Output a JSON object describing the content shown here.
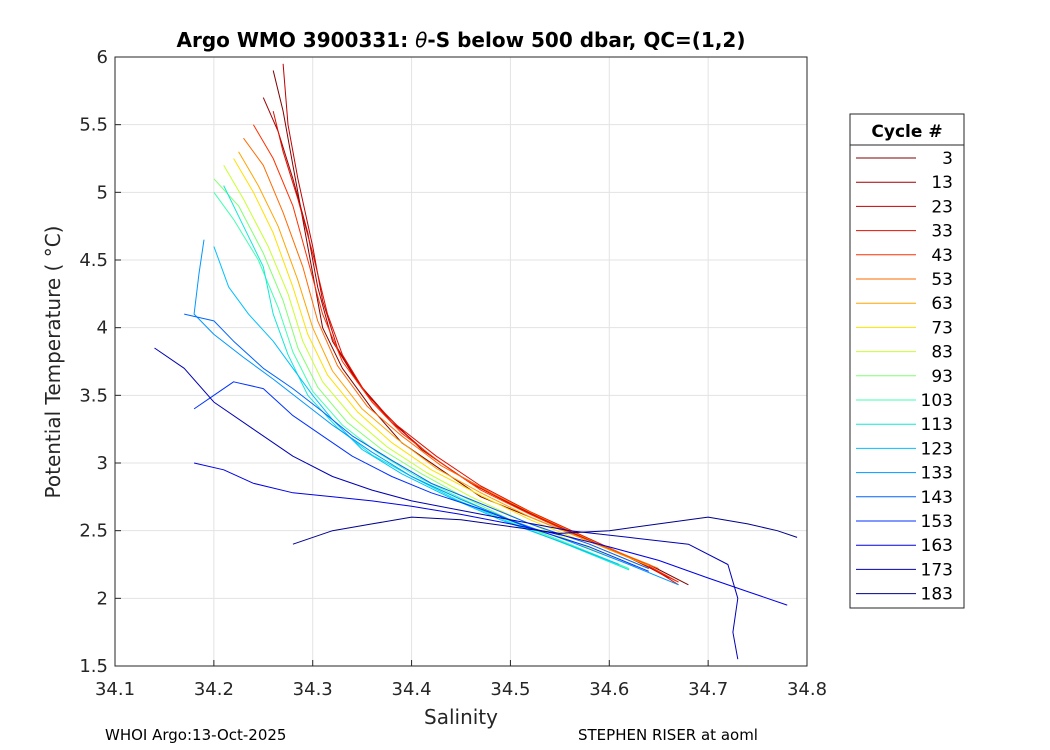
{
  "chart_data": {
    "type": "line",
    "title_parts": {
      "prefix": "Argo WMO 3900331: ",
      "symbol": "θ",
      "suffix": "-S below 500 dbar,  QC=(1,2)"
    },
    "xlabel": "Salinity",
    "ylabel": "Potential Temperature ( °C)",
    "xlim": [
      34.1,
      34.8
    ],
    "ylim": [
      1.5,
      6
    ],
    "xticks": [
      "34.1",
      "34.2",
      "34.3",
      "34.4",
      "34.5",
      "34.6",
      "34.7",
      "34.8"
    ],
    "yticks": [
      "1.5",
      "2",
      "2.5",
      "3",
      "3.5",
      "4",
      "4.5",
      "5",
      "5.5",
      "6"
    ],
    "grid": true,
    "legend": {
      "title": "Cycle #",
      "placement": "right-outside",
      "entries": [
        {
          "label": "3",
          "color": "#7f0000"
        },
        {
          "label": "13",
          "color": "#9e0000"
        },
        {
          "label": "23",
          "color": "#c00000"
        },
        {
          "label": "33",
          "color": "#e01000"
        },
        {
          "label": "43",
          "color": "#ff3000"
        },
        {
          "label": "53",
          "color": "#ff6a00"
        },
        {
          "label": "63",
          "color": "#ffa500"
        },
        {
          "label": "73",
          "color": "#ffe000"
        },
        {
          "label": "83",
          "color": "#c8ff30"
        },
        {
          "label": "93",
          "color": "#80ff70"
        },
        {
          "label": "103",
          "color": "#40ffb0"
        },
        {
          "label": "113",
          "color": "#10e8d8"
        },
        {
          "label": "123",
          "color": "#00c0ff"
        },
        {
          "label": "133",
          "color": "#0096ff"
        },
        {
          "label": "143",
          "color": "#0064ff"
        },
        {
          "label": "153",
          "color": "#0032ff"
        },
        {
          "label": "163",
          "color": "#0000e8"
        },
        {
          "label": "173",
          "color": "#0000b4"
        },
        {
          "label": "183",
          "color": "#00008f"
        }
      ]
    },
    "series": [
      {
        "name": "3",
        "color": "#7f0000",
        "points": [
          [
            34.26,
            5.9
          ],
          [
            34.27,
            5.6
          ],
          [
            34.28,
            5.2
          ],
          [
            34.29,
            4.8
          ],
          [
            34.3,
            4.4
          ],
          [
            34.31,
            4.0
          ],
          [
            34.33,
            3.7
          ],
          [
            34.36,
            3.4
          ],
          [
            34.39,
            3.15
          ],
          [
            34.43,
            2.95
          ],
          [
            34.47,
            2.75
          ],
          [
            34.52,
            2.6
          ],
          [
            34.58,
            2.42
          ],
          [
            34.64,
            2.25
          ],
          [
            34.68,
            2.1
          ]
        ]
      },
      {
        "name": "13",
        "color": "#9e0000",
        "points": [
          [
            34.25,
            5.7
          ],
          [
            34.265,
            5.45
          ],
          [
            34.28,
            5.1
          ],
          [
            34.295,
            4.7
          ],
          [
            34.305,
            4.3
          ],
          [
            34.32,
            3.9
          ],
          [
            34.345,
            3.6
          ],
          [
            34.375,
            3.35
          ],
          [
            34.41,
            3.1
          ],
          [
            34.45,
            2.9
          ],
          [
            34.5,
            2.7
          ],
          [
            34.56,
            2.5
          ],
          [
            34.62,
            2.3
          ],
          [
            34.67,
            2.12
          ]
        ]
      },
      {
        "name": "23",
        "color": "#c00000",
        "points": [
          [
            34.27,
            5.95
          ],
          [
            34.275,
            5.5
          ],
          [
            34.285,
            5.1
          ],
          [
            34.3,
            4.6
          ],
          [
            34.31,
            4.2
          ],
          [
            34.325,
            3.85
          ],
          [
            34.35,
            3.55
          ],
          [
            34.38,
            3.3
          ],
          [
            34.42,
            3.05
          ],
          [
            34.46,
            2.85
          ],
          [
            34.51,
            2.66
          ],
          [
            34.57,
            2.46
          ],
          [
            34.63,
            2.27
          ],
          [
            34.66,
            2.15
          ]
        ]
      },
      {
        "name": "33",
        "color": "#e01000",
        "points": [
          [
            34.26,
            5.6
          ],
          [
            34.27,
            5.3
          ],
          [
            34.285,
            4.95
          ],
          [
            34.3,
            4.55
          ],
          [
            34.315,
            4.1
          ],
          [
            34.33,
            3.8
          ],
          [
            34.355,
            3.5
          ],
          [
            34.385,
            3.28
          ],
          [
            34.425,
            3.05
          ],
          [
            34.47,
            2.83
          ],
          [
            34.52,
            2.64
          ],
          [
            34.58,
            2.44
          ],
          [
            34.64,
            2.24
          ],
          [
            34.67,
            2.1
          ]
        ]
      },
      {
        "name": "43",
        "color": "#ff3000",
        "points": [
          [
            34.24,
            5.5
          ],
          [
            34.26,
            5.25
          ],
          [
            34.28,
            4.9
          ],
          [
            34.295,
            4.5
          ],
          [
            34.31,
            4.1
          ],
          [
            34.33,
            3.75
          ],
          [
            34.36,
            3.45
          ],
          [
            34.39,
            3.22
          ],
          [
            34.43,
            3.0
          ],
          [
            34.47,
            2.8
          ],
          [
            34.52,
            2.62
          ],
          [
            34.58,
            2.42
          ],
          [
            34.64,
            2.24
          ],
          [
            34.67,
            2.12
          ]
        ]
      },
      {
        "name": "53",
        "color": "#ff6a00",
        "points": [
          [
            34.23,
            5.4
          ],
          [
            34.25,
            5.2
          ],
          [
            34.27,
            4.85
          ],
          [
            34.29,
            4.45
          ],
          [
            34.305,
            4.05
          ],
          [
            34.325,
            3.72
          ],
          [
            34.355,
            3.42
          ],
          [
            34.39,
            3.2
          ],
          [
            34.43,
            2.98
          ],
          [
            34.48,
            2.78
          ],
          [
            34.53,
            2.6
          ],
          [
            34.59,
            2.4
          ],
          [
            34.65,
            2.22
          ]
        ]
      },
      {
        "name": "63",
        "color": "#ffa500",
        "points": [
          [
            34.225,
            5.3
          ],
          [
            34.245,
            5.05
          ],
          [
            34.265,
            4.75
          ],
          [
            34.285,
            4.35
          ],
          [
            34.3,
            4.0
          ],
          [
            34.32,
            3.68
          ],
          [
            34.35,
            3.4
          ],
          [
            34.385,
            3.18
          ],
          [
            34.425,
            2.96
          ],
          [
            34.47,
            2.78
          ],
          [
            34.52,
            2.6
          ],
          [
            34.58,
            2.42
          ],
          [
            34.64,
            2.24
          ]
        ]
      },
      {
        "name": "73",
        "color": "#ffe000",
        "points": [
          [
            34.22,
            5.25
          ],
          [
            34.24,
            5.0
          ],
          [
            34.26,
            4.7
          ],
          [
            34.28,
            4.3
          ],
          [
            34.295,
            3.95
          ],
          [
            34.315,
            3.65
          ],
          [
            34.345,
            3.38
          ],
          [
            34.38,
            3.15
          ],
          [
            34.42,
            2.95
          ],
          [
            34.47,
            2.76
          ],
          [
            34.52,
            2.58
          ],
          [
            34.58,
            2.4
          ],
          [
            34.64,
            2.22
          ]
        ]
      },
      {
        "name": "83",
        "color": "#c8ff30",
        "points": [
          [
            34.21,
            5.2
          ],
          [
            34.23,
            4.95
          ],
          [
            34.255,
            4.6
          ],
          [
            34.275,
            4.25
          ],
          [
            34.29,
            3.9
          ],
          [
            34.31,
            3.6
          ],
          [
            34.34,
            3.34
          ],
          [
            34.375,
            3.12
          ],
          [
            34.415,
            2.93
          ],
          [
            34.46,
            2.75
          ],
          [
            34.51,
            2.58
          ],
          [
            34.57,
            2.4
          ],
          [
            34.63,
            2.22
          ]
        ]
      },
      {
        "name": "93",
        "color": "#80ff70",
        "points": [
          [
            34.2,
            5.1
          ],
          [
            34.225,
            4.9
          ],
          [
            34.25,
            4.55
          ],
          [
            34.27,
            4.2
          ],
          [
            34.285,
            3.85
          ],
          [
            34.305,
            3.56
          ],
          [
            34.335,
            3.3
          ],
          [
            34.37,
            3.1
          ],
          [
            34.41,
            2.92
          ],
          [
            34.455,
            2.74
          ],
          [
            34.5,
            2.58
          ],
          [
            34.56,
            2.4
          ],
          [
            34.62,
            2.22
          ]
        ]
      },
      {
        "name": "103",
        "color": "#40ffb0",
        "points": [
          [
            34.2,
            5.0
          ],
          [
            34.22,
            4.8
          ],
          [
            34.245,
            4.5
          ],
          [
            34.265,
            4.15
          ],
          [
            34.28,
            3.82
          ],
          [
            34.3,
            3.53
          ],
          [
            34.33,
            3.28
          ],
          [
            34.365,
            3.08
          ],
          [
            34.405,
            2.9
          ],
          [
            34.45,
            2.74
          ],
          [
            34.5,
            2.57
          ],
          [
            34.56,
            2.4
          ],
          [
            34.62,
            2.22
          ]
        ]
      },
      {
        "name": "113",
        "color": "#10e8d8",
        "points": [
          [
            34.21,
            5.05
          ],
          [
            34.23,
            4.75
          ],
          [
            34.25,
            4.45
          ],
          [
            34.26,
            4.1
          ],
          [
            34.275,
            3.8
          ],
          [
            34.295,
            3.5
          ],
          [
            34.325,
            3.26
          ],
          [
            34.36,
            3.06
          ],
          [
            34.4,
            2.9
          ],
          [
            34.445,
            2.73
          ],
          [
            34.5,
            2.56
          ],
          [
            34.56,
            2.39
          ],
          [
            34.62,
            2.21
          ]
        ]
      },
      {
        "name": "123",
        "color": "#00c0ff",
        "points": [
          [
            34.2,
            4.6
          ],
          [
            34.215,
            4.3
          ],
          [
            34.235,
            4.1
          ],
          [
            34.26,
            3.9
          ],
          [
            34.28,
            3.7
          ],
          [
            34.3,
            3.5
          ],
          [
            34.32,
            3.32
          ],
          [
            34.35,
            3.1
          ],
          [
            34.39,
            2.92
          ],
          [
            34.44,
            2.74
          ],
          [
            34.49,
            2.58
          ],
          [
            34.55,
            2.42
          ],
          [
            34.61,
            2.25
          ]
        ]
      },
      {
        "name": "133",
        "color": "#0096ff",
        "points": [
          [
            34.19,
            4.65
          ],
          [
            34.185,
            4.4
          ],
          [
            34.18,
            4.1
          ],
          [
            34.2,
            3.95
          ],
          [
            34.23,
            3.78
          ],
          [
            34.26,
            3.62
          ],
          [
            34.29,
            3.45
          ],
          [
            34.32,
            3.28
          ],
          [
            34.36,
            3.08
          ],
          [
            34.4,
            2.9
          ],
          [
            34.45,
            2.73
          ],
          [
            34.5,
            2.58
          ],
          [
            34.56,
            2.42
          ],
          [
            34.62,
            2.25
          ],
          [
            34.67,
            2.1
          ]
        ]
      },
      {
        "name": "143",
        "color": "#0064ff",
        "points": [
          [
            34.17,
            4.1
          ],
          [
            34.2,
            4.05
          ],
          [
            34.22,
            3.9
          ],
          [
            34.25,
            3.7
          ],
          [
            34.28,
            3.55
          ],
          [
            34.31,
            3.38
          ],
          [
            34.34,
            3.2
          ],
          [
            34.38,
            3.02
          ],
          [
            34.42,
            2.85
          ],
          [
            34.47,
            2.7
          ],
          [
            34.52,
            2.55
          ],
          [
            34.58,
            2.4
          ],
          [
            34.64,
            2.22
          ]
        ]
      },
      {
        "name": "153",
        "color": "#0032ff",
        "points": [
          [
            34.18,
            3.4
          ],
          [
            34.2,
            3.5
          ],
          [
            34.22,
            3.6
          ],
          [
            34.25,
            3.55
          ],
          [
            34.28,
            3.35
          ],
          [
            34.31,
            3.2
          ],
          [
            34.34,
            3.05
          ],
          [
            34.38,
            2.9
          ],
          [
            34.42,
            2.78
          ],
          [
            34.47,
            2.66
          ],
          [
            34.52,
            2.52
          ],
          [
            34.58,
            2.38
          ],
          [
            34.64,
            2.2
          ]
        ]
      },
      {
        "name": "163",
        "color": "#0000e8",
        "points": [
          [
            34.18,
            3.0
          ],
          [
            34.21,
            2.95
          ],
          [
            34.24,
            2.85
          ],
          [
            34.28,
            2.78
          ],
          [
            34.32,
            2.75
          ],
          [
            34.36,
            2.72
          ],
          [
            34.4,
            2.68
          ],
          [
            34.45,
            2.62
          ],
          [
            34.5,
            2.55
          ],
          [
            34.55,
            2.47
          ],
          [
            34.6,
            2.38
          ],
          [
            34.65,
            2.28
          ],
          [
            34.7,
            2.15
          ],
          [
            34.74,
            2.05
          ],
          [
            34.78,
            1.95
          ]
        ]
      },
      {
        "name": "173",
        "color": "#0000b4",
        "points": [
          [
            34.14,
            3.85
          ],
          [
            34.17,
            3.7
          ],
          [
            34.2,
            3.45
          ],
          [
            34.24,
            3.25
          ],
          [
            34.28,
            3.05
          ],
          [
            34.32,
            2.9
          ],
          [
            34.36,
            2.8
          ],
          [
            34.4,
            2.72
          ],
          [
            34.45,
            2.65
          ],
          [
            34.5,
            2.58
          ],
          [
            34.56,
            2.5
          ],
          [
            34.62,
            2.45
          ],
          [
            34.68,
            2.4
          ],
          [
            34.72,
            2.25
          ],
          [
            34.73,
            2.0
          ],
          [
            34.725,
            1.75
          ],
          [
            34.73,
            1.55
          ]
        ]
      },
      {
        "name": "183",
        "color": "#00008f",
        "points": [
          [
            34.28,
            2.4
          ],
          [
            34.32,
            2.5
          ],
          [
            34.36,
            2.55
          ],
          [
            34.4,
            2.6
          ],
          [
            34.45,
            2.58
          ],
          [
            34.5,
            2.53
          ],
          [
            34.55,
            2.48
          ],
          [
            34.6,
            2.5
          ],
          [
            34.65,
            2.55
          ],
          [
            34.7,
            2.6
          ],
          [
            34.74,
            2.55
          ],
          [
            34.77,
            2.5
          ],
          [
            34.79,
            2.45
          ]
        ]
      }
    ]
  },
  "footer": {
    "left": "WHOI Argo:13-Oct-2025",
    "right": "STEPHEN RISER at aoml"
  }
}
